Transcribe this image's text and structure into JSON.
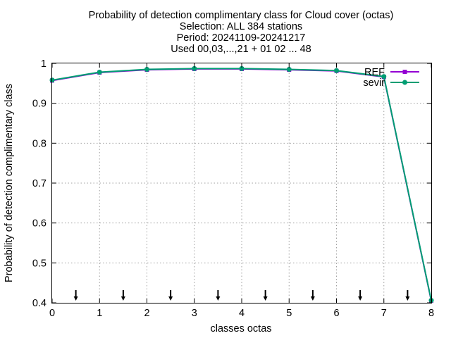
{
  "chart_data": {
    "type": "line",
    "title_lines": [
      "Probability of detection complimentary class  for Cloud cover (octas)",
      "Selection: ALL    384 stations",
      "Period: 20241109-20241217",
      "Used 00,03,...,21 + 01 02 ... 48"
    ],
    "xlabel": "classes octas",
    "ylabel": "Probability of detection complimentary class",
    "xlim": [
      0,
      8
    ],
    "ylim": [
      0.4,
      1.0
    ],
    "x_ticks": [
      "0",
      "1",
      "2",
      "3",
      "4",
      "5",
      "6",
      "7",
      "8"
    ],
    "y_ticks": [
      "0.4",
      "0.5",
      "0.6",
      "0.7",
      "0.8",
      "0.9",
      "1"
    ],
    "grid": true,
    "legend_position": "top-right",
    "x": [
      0,
      1,
      2,
      3,
      4,
      5,
      6,
      7,
      8
    ],
    "series": [
      {
        "name": "REF",
        "color": "#9400d3",
        "values": [
          0.957,
          0.977,
          0.984,
          0.986,
          0.986,
          0.984,
          0.981,
          0.966,
          0.405
        ]
      },
      {
        "name": "sevir",
        "color": "#009e73",
        "values": [
          0.958,
          0.978,
          0.985,
          0.987,
          0.987,
          0.985,
          0.982,
          0.967,
          0.406
        ]
      }
    ],
    "arrow_markers_x": [
      0.5,
      1.5,
      2.5,
      3.5,
      4.5,
      5.5,
      6.5,
      7.5
    ]
  }
}
